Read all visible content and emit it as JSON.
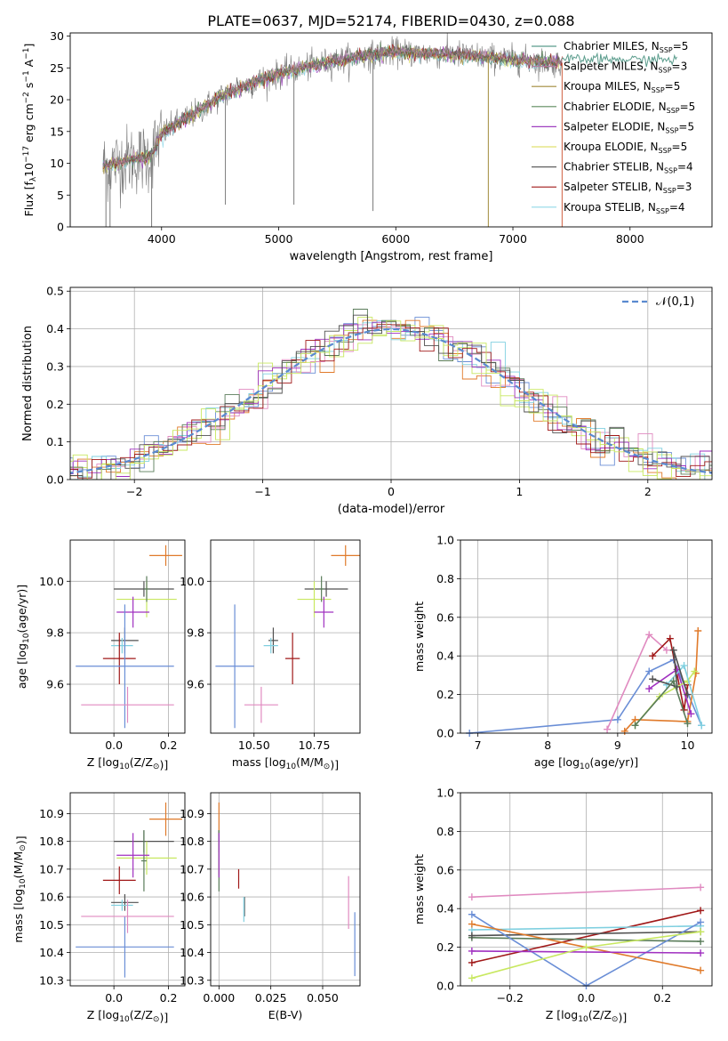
{
  "title": "PLATE=0637, MJD=52174, FIBERID=0430, z=0.088",
  "colors": {
    "Chabrier MILES": "#5a9c8c",
    "Salpeter MILES": "#b07fa0",
    "Kroupa MILES": "#a08a3a",
    "Chabrier ELODIE": "#5c8a5c",
    "Salpeter ELODIE": "#a040c0",
    "Kroupa ELODIE": "#e0e070",
    "Chabrier STELIB": "#606060",
    "Salpeter STELIB": "#a01818",
    "Kroupa STELIB": "#90d8e8",
    "blue": "#6a8ed6",
    "orange": "#e07a2a",
    "pink": "#e08ac0",
    "lime": "#c8e860",
    "cyan": "#80d0e0",
    "darkgreen": "#5a7c5a",
    "purple": "#a030c0",
    "darkred": "#a01818",
    "gray": "#505050",
    "normal": "#5a8ad0"
  },
  "chart_data": [
    {
      "id": "spectrum",
      "type": "line",
      "xlabel": "wavelength [Angstrom, rest frame]",
      "ylabel": "Flux [f_λ 10^-17 erg cm^-2 s^-1 A^-1]",
      "xlim": [
        3220,
        8700
      ],
      "ylim": [
        0,
        30.5
      ],
      "xticks": [
        4000,
        5000,
        6000,
        7000,
        8000
      ],
      "yticks": [
        0,
        5,
        10,
        15,
        20,
        25,
        30
      ],
      "grid": false,
      "legend_position": "top-right",
      "legend": [
        {
          "label": "Chabrier MILES",
          "n": "5"
        },
        {
          "label": "Salpeter MILES",
          "n": "3"
        },
        {
          "label": "Kroupa MILES",
          "n": "5"
        },
        {
          "label": "Chabrier ELODIE",
          "n": "5"
        },
        {
          "label": "Salpeter ELODIE",
          "n": "5"
        },
        {
          "label": "Kroupa ELODIE",
          "n": "5"
        },
        {
          "label": "Chabrier STELIB",
          "n": "4"
        },
        {
          "label": "Salpeter STELIB",
          "n": "3"
        },
        {
          "label": "Kroupa STELIB",
          "n": "4"
        }
      ],
      "continuum": {
        "x": [
          3500,
          3700,
          3900,
          4000,
          4150,
          4300,
          4500,
          4700,
          4900,
          5100,
          5400,
          5700,
          6000,
          6300,
          6600,
          6900,
          7200,
          7420
        ],
        "y": [
          9.5,
          10.5,
          11.0,
          14.5,
          16.5,
          18.0,
          20.5,
          22.0,
          23.5,
          24.5,
          25.8,
          26.8,
          27.5,
          27.2,
          27.0,
          26.5,
          26.0,
          25.8
        ]
      },
      "model_x_range": [
        7420,
        8400
      ],
      "dips": [
        {
          "x": 3525,
          "y": 0
        },
        {
          "x": 3560,
          "y": 0
        },
        {
          "x": 3915,
          "y": 0
        },
        {
          "x": 4545,
          "y": 3.5
        },
        {
          "x": 5130,
          "y": 3.5
        },
        {
          "x": 5805,
          "y": 2.5
        },
        {
          "x": 6790,
          "y": 0
        },
        {
          "x": 7420,
          "y": 0
        }
      ]
    },
    {
      "id": "residuals",
      "type": "histogram",
      "xlabel": "(data-model)/error",
      "ylabel": "Normed distribution",
      "xlim": [
        -2.5,
        2.5
      ],
      "ylim": [
        0,
        0.51
      ],
      "xticks": [
        -2,
        -1,
        0,
        1,
        2
      ],
      "xtick_labels": [
        "−2",
        "−1",
        "0",
        "1",
        "2"
      ],
      "yticks": [
        0.0,
        0.1,
        0.2,
        0.3,
        0.4,
        0.5
      ],
      "ytick_labels": [
        "0.0",
        "0.1",
        "0.2",
        "0.3",
        "0.4",
        "0.5"
      ],
      "grid": true,
      "bin_width": 0.111,
      "legend": "𝒩(0,1)",
      "legend_position": "top-right"
    },
    {
      "id": "age-Z",
      "type": "scatter",
      "xlabel": "Z [log10(Z/Z⊙)]",
      "ylabel": "age [log10(age/yr)]",
      "xlim": [
        -0.16,
        0.26
      ],
      "ylim": [
        9.41,
        10.16
      ],
      "xticks": [
        0.0,
        0.2
      ],
      "xtick_labels": [
        "0.0",
        "0.2"
      ],
      "yticks": [
        9.6,
        9.8,
        10.0
      ],
      "ytick_labels": [
        "9.6",
        "9.8",
        "10.0"
      ],
      "grid": true,
      "points": [
        {
          "x": 0.19,
          "y": 10.1,
          "xerr": 0.06,
          "yerr": 0.04,
          "color": "orange"
        },
        {
          "x": 0.11,
          "y": 9.97,
          "xerr": 0.11,
          "yerr": 0.03,
          "color": "gray"
        },
        {
          "x": 0.12,
          "y": 9.93,
          "xerr": 0.11,
          "yerr": 0.07,
          "color": "lime"
        },
        {
          "x": 0.12,
          "y": 9.97,
          "xerr": 0.01,
          "yerr": 0.05,
          "color": "darkgreen"
        },
        {
          "x": 0.07,
          "y": 9.88,
          "xerr": 0.06,
          "yerr": 0.06,
          "color": "purple"
        },
        {
          "x": 0.04,
          "y": 9.77,
          "xerr": 0.05,
          "yerr": 0.05,
          "color": "gray"
        },
        {
          "x": 0.03,
          "y": 9.75,
          "xerr": 0.04,
          "yerr": 0.03,
          "color": "cyan"
        },
        {
          "x": 0.02,
          "y": 9.7,
          "xerr": 0.06,
          "yerr": 0.1,
          "color": "darkred"
        },
        {
          "x": 0.04,
          "y": 9.67,
          "xerr": 0.18,
          "yerr": 0.24,
          "color": "blue"
        },
        {
          "x": 0.05,
          "y": 9.52,
          "xerr": 0.17,
          "yerr": 0.07,
          "color": "pink"
        }
      ]
    },
    {
      "id": "age-mass",
      "type": "scatter",
      "xlabel": "mass [log10(M/M⊙)]",
      "ylabel": "",
      "xlim": [
        10.32,
        10.94
      ],
      "ylim": [
        9.41,
        10.16
      ],
      "xticks": [
        10.5,
        10.75
      ],
      "xtick_labels": [
        "10.50",
        "10.75"
      ],
      "yticks": [
        9.6,
        9.8,
        10.0
      ],
      "ytick_labels": [
        "9.6",
        "9.8",
        "10.0"
      ],
      "grid": true,
      "points": [
        {
          "x": 10.88,
          "y": 10.1,
          "xerr": 0.06,
          "yerr": 0.04,
          "color": "orange"
        },
        {
          "x": 10.8,
          "y": 9.97,
          "xerr": 0.09,
          "yerr": 0.03,
          "color": "gray"
        },
        {
          "x": 10.75,
          "y": 9.93,
          "xerr": 0.07,
          "yerr": 0.07,
          "color": "lime"
        },
        {
          "x": 10.78,
          "y": 9.97,
          "xerr": 0.01,
          "yerr": 0.05,
          "color": "darkgreen"
        },
        {
          "x": 10.79,
          "y": 9.88,
          "xerr": 0.04,
          "yerr": 0.06,
          "color": "purple"
        },
        {
          "x": 10.58,
          "y": 9.77,
          "xerr": 0.02,
          "yerr": 0.05,
          "color": "gray"
        },
        {
          "x": 10.57,
          "y": 9.75,
          "xerr": 0.03,
          "yerr": 0.03,
          "color": "cyan"
        },
        {
          "x": 10.66,
          "y": 9.7,
          "xerr": 0.03,
          "yerr": 0.1,
          "color": "darkred"
        },
        {
          "x": 10.42,
          "y": 9.67,
          "xerr": 0.08,
          "yerr": 0.24,
          "color": "blue"
        },
        {
          "x": 10.53,
          "y": 9.52,
          "xerr": 0.07,
          "yerr": 0.07,
          "color": "pink"
        }
      ]
    },
    {
      "id": "weight-age",
      "type": "line",
      "xlabel": "age [log10(age/yr)]",
      "ylabel": "mass weight",
      "xlim": [
        6.75,
        10.35
      ],
      "ylim": [
        0,
        1.0
      ],
      "xticks": [
        7,
        8,
        9,
        10
      ],
      "xtick_labels": [
        "7",
        "8",
        "9",
        "10"
      ],
      "yticks": [
        0.0,
        0.2,
        0.4,
        0.6,
        0.8,
        1.0
      ],
      "ytick_labels": [
        "0.0",
        "0.2",
        "0.4",
        "0.6",
        "0.8",
        "1.0"
      ],
      "grid": true,
      "series": [
        {
          "color": "blue",
          "x": [
            6.88,
            9.0,
            9.45,
            9.8,
            10.2
          ],
          "y": [
            0.0,
            0.07,
            0.32,
            0.38,
            0.04
          ]
        },
        {
          "color": "pink",
          "x": [
            8.85,
            9.45,
            9.7
          ],
          "y": [
            0.02,
            0.51,
            0.43
          ]
        },
        {
          "color": "darkred",
          "x": [
            9.5,
            9.75,
            9.95,
            10.0
          ],
          "y": [
            0.4,
            0.49,
            0.12,
            0.25
          ]
        },
        {
          "color": "orange",
          "x": [
            9.1,
            9.25,
            10.0,
            10.12,
            10.15
          ],
          "y": [
            0.01,
            0.07,
            0.06,
            0.31,
            0.53
          ]
        },
        {
          "color": "purple",
          "x": [
            9.45,
            9.85,
            10.05
          ],
          "y": [
            0.23,
            0.33,
            0.1
          ]
        },
        {
          "color": "lime",
          "x": [
            9.25,
            9.6,
            10.0,
            10.1
          ],
          "y": [
            0.04,
            0.19,
            0.27,
            0.32
          ]
        },
        {
          "color": "cyan",
          "x": [
            9.7,
            9.95,
            10.2
          ],
          "y": [
            0.25,
            0.35,
            0.04
          ]
        },
        {
          "color": "gray",
          "x": [
            9.5,
            9.85,
            9.8,
            10.0
          ],
          "y": [
            0.28,
            0.24,
            0.43,
            0.2
          ]
        },
        {
          "color": "darkgreen",
          "x": [
            9.25,
            9.8,
            10.0
          ],
          "y": [
            0.04,
            0.27,
            0.05
          ]
        }
      ]
    },
    {
      "id": "mass-Z",
      "type": "scatter",
      "xlabel": "Z [log10(Z/Z⊙)]",
      "ylabel": "mass [log10(M/M⊙)]",
      "xlim": [
        -0.16,
        0.26
      ],
      "ylim": [
        10.28,
        10.975
      ],
      "xticks": [
        0.0,
        0.2
      ],
      "xtick_labels": [
        "0.0",
        "0.2"
      ],
      "yticks": [
        10.3,
        10.4,
        10.5,
        10.6,
        10.7,
        10.8,
        10.9
      ],
      "ytick_labels": [
        "10.3",
        "10.4",
        "10.5",
        "10.6",
        "10.7",
        "10.8",
        "10.9"
      ],
      "grid": true,
      "points": [
        {
          "x": 0.19,
          "y": 10.88,
          "xerr": 0.06,
          "yerr": 0.06,
          "color": "orange"
        },
        {
          "x": 0.11,
          "y": 10.8,
          "xerr": 0.11,
          "yerr": 0.04,
          "color": "gray"
        },
        {
          "x": 0.12,
          "y": 10.74,
          "xerr": 0.11,
          "yerr": 0.06,
          "color": "lime"
        },
        {
          "x": 0.11,
          "y": 10.73,
          "xerr": 0.01,
          "yerr": 0.11,
          "color": "darkgreen"
        },
        {
          "x": 0.07,
          "y": 10.75,
          "xerr": 0.06,
          "yerr": 0.08,
          "color": "purple"
        },
        {
          "x": 0.04,
          "y": 10.58,
          "xerr": 0.05,
          "yerr": 0.03,
          "color": "gray"
        },
        {
          "x": 0.03,
          "y": 10.57,
          "xerr": 0.04,
          "yerr": 0.02,
          "color": "cyan"
        },
        {
          "x": 0.02,
          "y": 10.66,
          "xerr": 0.06,
          "yerr": 0.05,
          "color": "darkred"
        },
        {
          "x": 0.04,
          "y": 10.42,
          "xerr": 0.18,
          "yerr": 0.11,
          "color": "blue"
        },
        {
          "x": 0.05,
          "y": 10.53,
          "xerr": 0.17,
          "yerr": 0.06,
          "color": "pink"
        }
      ]
    },
    {
      "id": "mass-EBV",
      "type": "scatter",
      "xlabel": "E(B-V)",
      "ylabel": "",
      "xlim": [
        -0.004,
        0.068
      ],
      "ylim": [
        10.28,
        10.975
      ],
      "xticks": [
        0.0,
        0.025,
        0.05
      ],
      "xtick_labels": [
        "0.000",
        "0.025",
        "0.050"
      ],
      "yticks": [
        10.3,
        10.4,
        10.5,
        10.6,
        10.7,
        10.8,
        10.9
      ],
      "ytick_labels": [
        "10.3",
        "10.4",
        "10.5",
        "10.6",
        "10.7",
        "10.8",
        "10.9"
      ],
      "grid": true,
      "points": [
        {
          "x": 0.0,
          "y": 10.88,
          "xerr": 0.0,
          "yerr": 0.06,
          "color": "orange"
        },
        {
          "x": 0.0,
          "y": 10.8,
          "xerr": 0.0,
          "yerr": 0.04,
          "color": "gray"
        },
        {
          "x": 0.0,
          "y": 10.74,
          "xerr": 0.0,
          "yerr": 0.06,
          "color": "lime"
        },
        {
          "x": 0.0,
          "y": 10.73,
          "xerr": 0.0,
          "yerr": 0.11,
          "color": "darkgreen"
        },
        {
          "x": 0.0,
          "y": 10.75,
          "xerr": 0.0,
          "yerr": 0.08,
          "color": "purple"
        },
        {
          "x": 0.0123,
          "y": 10.565,
          "xerr": 0.0,
          "yerr": 0.035,
          "color": "gray"
        },
        {
          "x": 0.012,
          "y": 10.555,
          "xerr": 0.0,
          "yerr": 0.045,
          "color": "cyan"
        },
        {
          "x": 0.0095,
          "y": 10.665,
          "xerr": 0.0,
          "yerr": 0.035,
          "color": "darkred"
        },
        {
          "x": 0.0655,
          "y": 10.43,
          "xerr": 0.0,
          "yerr": 0.115,
          "color": "blue"
        },
        {
          "x": 0.0625,
          "y": 10.58,
          "xerr": 0.0,
          "yerr": 0.095,
          "color": "pink"
        }
      ]
    },
    {
      "id": "weight-Z",
      "type": "line",
      "xlabel": "Z [log10(Z/Z⊙)]",
      "ylabel": "mass weight",
      "xlim": [
        -0.33,
        0.33
      ],
      "ylim": [
        0,
        1.0
      ],
      "xticks": [
        -0.2,
        0.0,
        0.2
      ],
      "xtick_labels": [
        "−0.2",
        "0.0",
        "0.2"
      ],
      "yticks": [
        0.0,
        0.2,
        0.4,
        0.6,
        0.8,
        1.0
      ],
      "ytick_labels": [
        "0.0",
        "0.2",
        "0.4",
        "0.6",
        "0.8",
        "1.0"
      ],
      "grid": true,
      "series": [
        {
          "color": "pink",
          "x": [
            -0.3,
            0.3
          ],
          "y": [
            0.46,
            0.51
          ]
        },
        {
          "color": "darkred",
          "x": [
            -0.3,
            0.3
          ],
          "y": [
            0.12,
            0.39
          ]
        },
        {
          "color": "cyan",
          "x": [
            -0.3,
            0.3
          ],
          "y": [
            0.29,
            0.31
          ]
        },
        {
          "color": "darkgreen",
          "x": [
            -0.3,
            0.3
          ],
          "y": [
            0.25,
            0.23
          ]
        },
        {
          "color": "gray",
          "x": [
            -0.3,
            0.3
          ],
          "y": [
            0.26,
            0.28
          ]
        },
        {
          "color": "blue",
          "x": [
            -0.3,
            0.0,
            0.3
          ],
          "y": [
            0.37,
            0.0,
            0.33
          ]
        },
        {
          "color": "orange",
          "x": [
            -0.3,
            0.3
          ],
          "y": [
            0.32,
            0.08
          ]
        },
        {
          "color": "purple",
          "x": [
            -0.3,
            0.3
          ],
          "y": [
            0.18,
            0.17
          ]
        },
        {
          "color": "lime",
          "x": [
            -0.3,
            0.0,
            0.3
          ],
          "y": [
            0.04,
            0.2,
            0.28
          ]
        }
      ]
    }
  ]
}
